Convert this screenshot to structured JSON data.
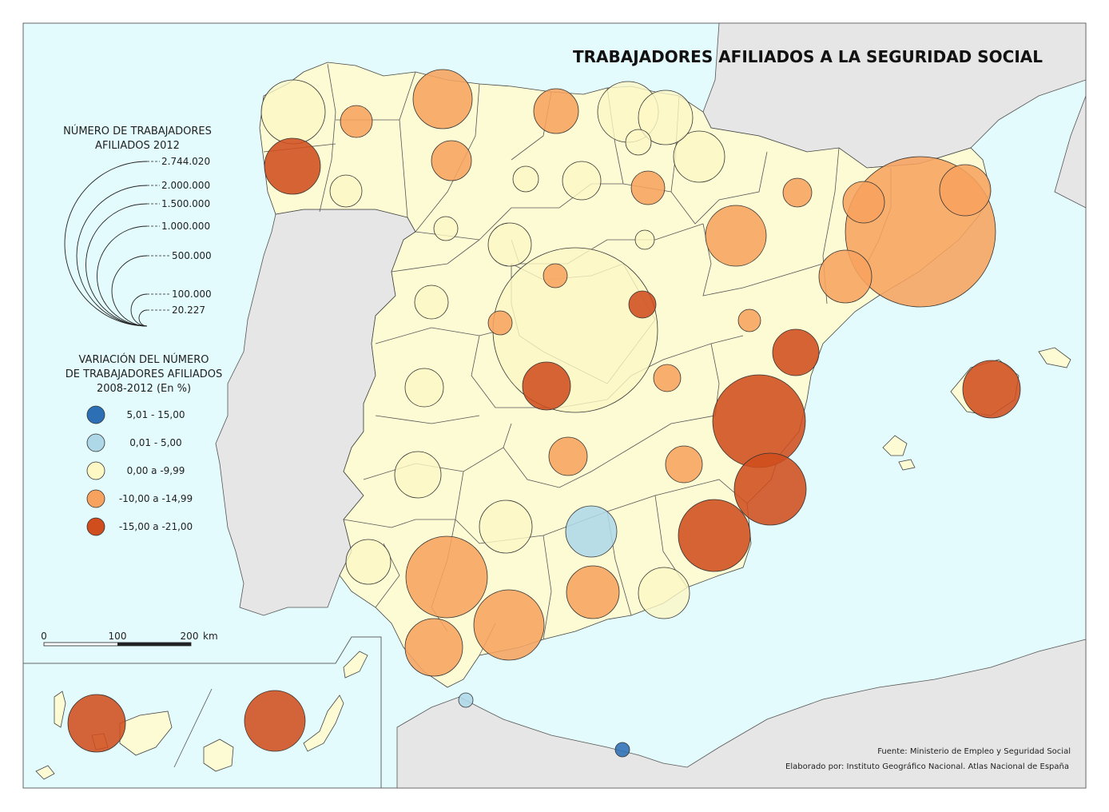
{
  "title": "TRABAJADORES AFILIADOS A LA SEGURIDAD SOCIAL",
  "colors": {
    "sea": "#e3fbfd",
    "foreign_land": "#e6e6e6",
    "province": "#fdfbd4",
    "class_1": "#2d6fb5",
    "class_2": "#aed8e8",
    "class_3": "#fdf8c4",
    "class_4": "#f7a35f",
    "class_5": "#d04d1e"
  },
  "legend_size": {
    "heading_line1": "NÚMERO DE TRABAJADORES",
    "heading_line2": "AFILIADOS 2012",
    "values": [
      "2.744.020",
      "2.000.000",
      "1.500.000",
      "1.000.000",
      "500.000",
      "100.000",
      "20.227"
    ]
  },
  "legend_color": {
    "heading_line1": "VARIACIÓN DEL NÚMERO",
    "heading_line2": "DE TRABAJADORES AFILIADOS",
    "heading_line3": "2008-2012 (En %)",
    "classes": [
      {
        "label": "5,01 - 15,00",
        "color_key": "class_1"
      },
      {
        "label": "0,01 - 5,00",
        "color_key": "class_2"
      },
      {
        "label": "0,00 a -9,99",
        "color_key": "class_3"
      },
      {
        "label": "-10,00 a -14,99",
        "color_key": "class_4"
      },
      {
        "label": "-15,00 a -21,00",
        "color_key": "class_5"
      }
    ]
  },
  "scale_bar": {
    "ticks": [
      "0",
      "100",
      "200"
    ],
    "unit": "km"
  },
  "source": "Fuente: Ministerio de Empleo y Seguridad Social",
  "credit": "Elaborado por: Instituto Geográfico Nacional. Atlas Nacional de España"
}
